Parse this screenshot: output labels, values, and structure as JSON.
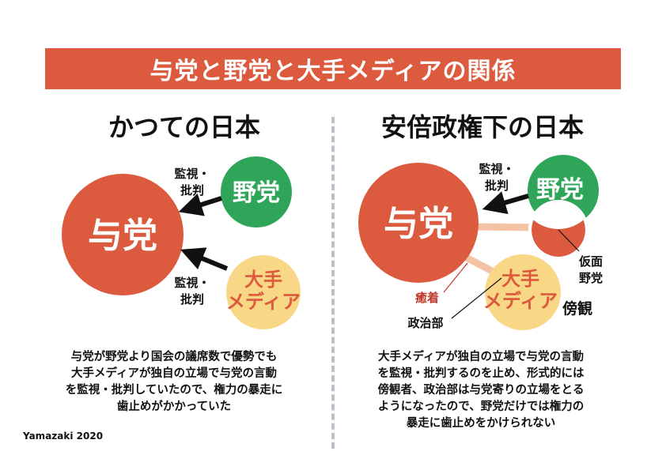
{
  "title": "与党と野党と大手メディアの関係",
  "left": {
    "heading": "かつての日本",
    "ruling_party": "与党",
    "opposition": "野党",
    "media": [
      "大手",
      "メディア"
    ],
    "label_top": [
      "監視・",
      "批判"
    ],
    "label_bottom": [
      "監視・",
      "批判"
    ],
    "caption": [
      "与党が野党より国会の議席数で優勢でも",
      "大手メディアが独自の立場で与党の言動",
      "を監視・批判していたので、権力の暴走に",
      "歯止めがかかっていた"
    ]
  },
  "right": {
    "heading": "安倍政権下の日本",
    "ruling_party": "与党",
    "opposition": "野党",
    "media": [
      "大手",
      "メディア"
    ],
    "label_top": [
      "監視・",
      "批判"
    ],
    "fake_opposition": [
      "仮面",
      "野党"
    ],
    "collusion": "癒着",
    "politics_dept": "政治部",
    "bystander": "傍観",
    "caption": [
      "大手メディアが独自の立場で与党の言動",
      "を監視・批判するのを止め、形式的には",
      "傍観者、政治部は与党寄りの立場をとる",
      "ようになったので、野党だけでは権力の",
      "暴走に歯止めをかけられない"
    ]
  },
  "credit": "Yamazaki 2020",
  "colors": {
    "banner": "#dc5a3e",
    "ruling": "#dc5a3e",
    "opposition": "#2fa55a",
    "media": "#f8d886",
    "media_text": "#dc5a3e",
    "accent_text": "#c0392b",
    "link": "#f4c3a6",
    "divider": "#b8c0c8"
  }
}
